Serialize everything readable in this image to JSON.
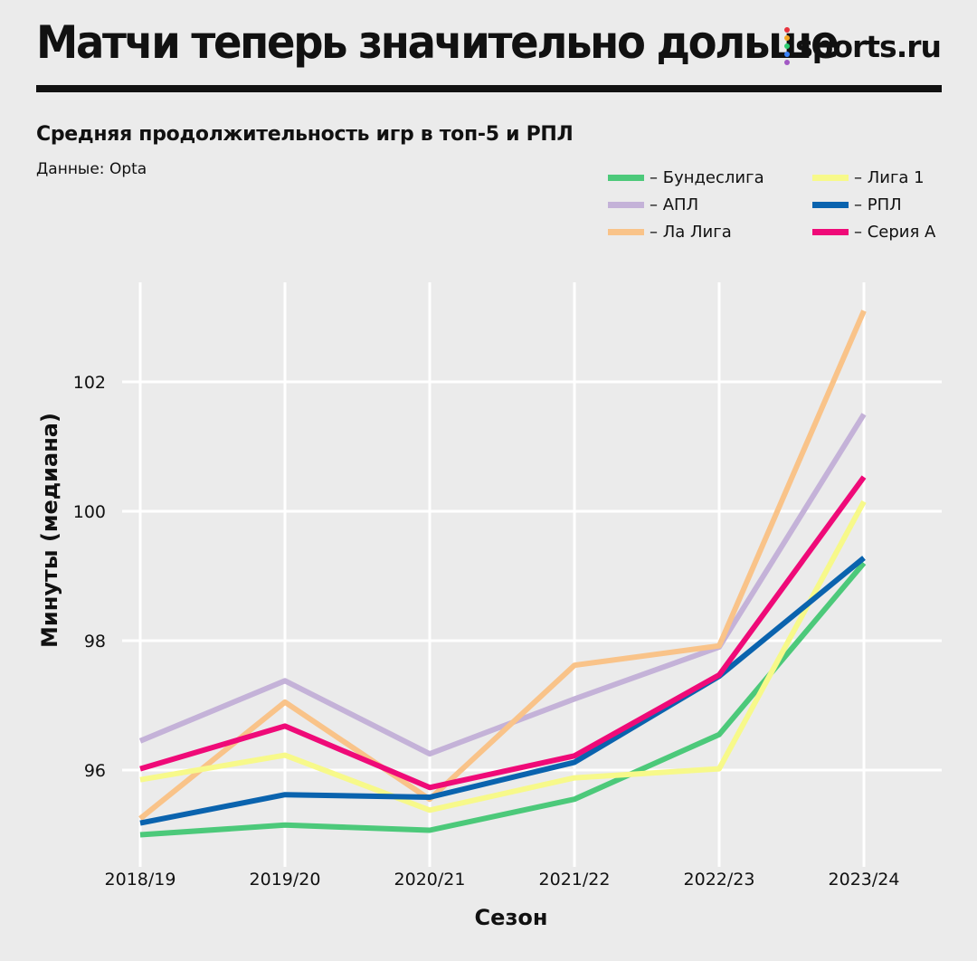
{
  "header": {
    "title": "Матчи теперь значительно дольше",
    "brand": "sports.ru",
    "brand_dot_colors": [
      "#e8323c",
      "#f5a623",
      "#2ecc71",
      "#3b82f6",
      "#a259c4"
    ]
  },
  "subtitle": "Средняя продолжительность игр в топ-5 и РПЛ",
  "source": "Данные: Opta",
  "chart_data": {
    "type": "line",
    "title": "",
    "xlabel": "Сезон",
    "ylabel": "Минуты (медиана)",
    "categories": [
      "2018/19",
      "2019/20",
      "2020/21",
      "2021/22",
      "2022/23",
      "2023/24"
    ],
    "ylim": [
      94.6,
      104.5
    ],
    "yticks": [
      96,
      98,
      100,
      102
    ],
    "grid": true,
    "legend_position": "top-right",
    "series": [
      {
        "name": "Бундеслига",
        "legend_label": "– Бундеслига",
        "color": "#4cc97a",
        "values": [
          95.0,
          95.15,
          95.07,
          95.55,
          96.55,
          99.2
        ]
      },
      {
        "name": "АПЛ",
        "legend_label": "– АПЛ",
        "color": "#c4b2d8",
        "values": [
          96.45,
          97.38,
          96.25,
          97.1,
          97.9,
          101.5
        ]
      },
      {
        "name": "Ла Лига",
        "legend_label": "– Ла Лига",
        "color": "#f9c389",
        "values": [
          95.25,
          97.05,
          95.55,
          97.62,
          97.92,
          103.1
        ]
      },
      {
        "name": "Лига 1",
        "legend_label": "– Лига 1",
        "color": "#f7f98a",
        "values": [
          95.85,
          96.23,
          95.38,
          95.88,
          96.02,
          100.15
        ]
      },
      {
        "name": "РПЛ",
        "legend_label": "– РПЛ",
        "color": "#0a63ae",
        "values": [
          95.18,
          95.62,
          95.58,
          96.12,
          97.45,
          99.28
        ]
      },
      {
        "name": "Серия А",
        "legend_label": "– Серия А",
        "color": "#ef0a78",
        "values": [
          96.02,
          96.68,
          95.73,
          96.22,
          97.47,
          100.53
        ]
      }
    ]
  }
}
